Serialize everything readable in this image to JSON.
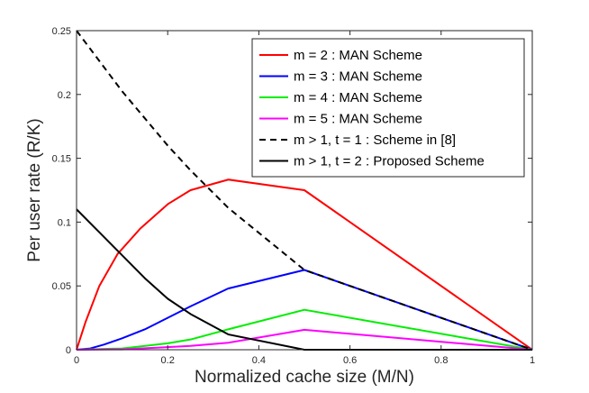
{
  "chart_data": {
    "type": "line",
    "title": "",
    "xlabel": "Normalized cache size (M/N)",
    "ylabel": "Per user rate (R/K)",
    "xlim": [
      0,
      1
    ],
    "ylim": [
      0,
      0.25
    ],
    "x_ticks": [
      0,
      0.2,
      0.4,
      0.6,
      0.8,
      1
    ],
    "x_tick_labels": [
      "0",
      "0.2",
      "0.4",
      "0.6",
      "0.8",
      "1"
    ],
    "y_ticks": [
      0,
      0.05,
      0.1,
      0.15,
      0.2,
      0.25
    ],
    "y_tick_labels": [
      "0",
      "0.05",
      "0.1",
      "0.15",
      "0.2",
      "0.25"
    ],
    "grid": false,
    "legend_position": "top-right",
    "series": [
      {
        "name": "m = 2 : MAN Scheme",
        "color": "#ff0000",
        "style": "solid",
        "x": [
          0,
          0.02,
          0.05,
          0.09,
          0.14,
          0.2,
          0.25,
          0.333,
          0.5,
          1
        ],
        "y": [
          0,
          0.022,
          0.05,
          0.075,
          0.095,
          0.114,
          0.125,
          0.1333,
          0.125,
          0
        ]
      },
      {
        "name": "m = 3 : MAN Scheme",
        "color": "#0000ff",
        "style": "solid",
        "x": [
          0,
          0.03,
          0.06,
          0.1,
          0.15,
          0.2,
          0.25,
          0.333,
          0.5,
          1
        ],
        "y": [
          0,
          0.001,
          0.004,
          0.009,
          0.016,
          0.025,
          0.034,
          0.048,
          0.0625,
          0
        ]
      },
      {
        "name": "m = 4 : MAN Scheme",
        "color": "#00ee00",
        "style": "solid",
        "x": [
          0,
          0.1,
          0.2,
          0.25,
          0.333,
          0.5,
          1
        ],
        "y": [
          0,
          0.001,
          0.005,
          0.008,
          0.016,
          0.0313,
          0
        ]
      },
      {
        "name": "m = 5 : MAN Scheme",
        "color": "#ff00ff",
        "style": "solid",
        "x": [
          0,
          0.1,
          0.2,
          0.25,
          0.333,
          0.5,
          1
        ],
        "y": [
          0,
          0.0003,
          0.002,
          0.003,
          0.0055,
          0.0156,
          0
        ]
      },
      {
        "name": "m > 1, t = 1 : Scheme in [8]",
        "color": "#000000",
        "style": "dashed",
        "x": [
          0,
          0.1,
          0.2,
          0.25,
          0.333,
          0.5,
          1
        ],
        "y": [
          0.25,
          0.2025,
          0.16,
          0.1406,
          0.1111,
          0.0625,
          0
        ]
      },
      {
        "name": "m > 1, t = 2 : Proposed Scheme",
        "color": "#000000",
        "style": "solid",
        "x": [
          0,
          0.05,
          0.1,
          0.15,
          0.2,
          0.25,
          0.333,
          0.5,
          1
        ],
        "y": [
          0.11,
          0.092,
          0.074,
          0.056,
          0.04,
          0.028,
          0.012,
          0,
          0
        ]
      }
    ]
  }
}
